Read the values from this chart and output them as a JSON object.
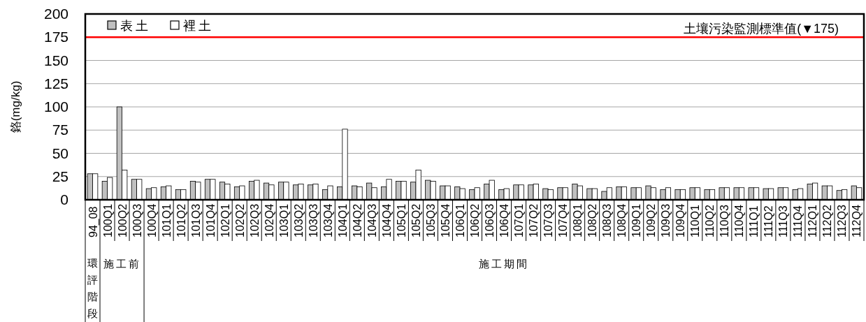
{
  "chart_data": {
    "type": "bar",
    "ylabel": "鉻(mg/kg)",
    "categories": [
      "94_08",
      "100Q1",
      "100Q2",
      "100Q3",
      "100Q4",
      "101Q1",
      "101Q2",
      "101Q3",
      "101Q4",
      "102Q1",
      "102Q2",
      "102Q3",
      "102Q4",
      "103Q1",
      "103Q2",
      "103Q3",
      "103Q4",
      "104Q1",
      "104Q2",
      "104Q3",
      "104Q4",
      "105Q1",
      "105Q2",
      "105Q3",
      "105Q4",
      "106Q1",
      "106Q2",
      "106Q3",
      "106Q4",
      "107Q1",
      "107Q2",
      "107Q3",
      "107Q4",
      "108Q1",
      "108Q2",
      "108Q3",
      "108Q4",
      "109Q1",
      "109Q2",
      "109Q3",
      "109Q4",
      "110Q1",
      "110Q2",
      "110Q3",
      "110Q4",
      "111Q1",
      "111Q2",
      "111Q3",
      "111Q4",
      "112Q1",
      "112Q2",
      "112Q3",
      "112Q4"
    ],
    "series": [
      {
        "name": "表土",
        "color": "#c0c0c0",
        "values": [
          28,
          20,
          100,
          22,
          12,
          14,
          11,
          20,
          22,
          19,
          14,
          20,
          18,
          19,
          16,
          16,
          11,
          14,
          15,
          18,
          14,
          20,
          19,
          21,
          15,
          14,
          11,
          17,
          11,
          16,
          16,
          12,
          13,
          17,
          12,
          9,
          14,
          13,
          15,
          11,
          11,
          13,
          11,
          13,
          13,
          13,
          12,
          13,
          11,
          17,
          15,
          10,
          15
        ]
      },
      {
        "name": "裡土",
        "color": "#ffffff",
        "values": [
          28,
          24,
          32,
          22,
          13,
          15,
          11,
          19,
          22,
          17,
          15,
          21,
          16,
          19,
          17,
          17,
          15,
          76,
          14,
          13,
          22,
          20,
          32,
          20,
          15,
          12,
          13,
          21,
          12,
          16,
          17,
          11,
          13,
          15,
          12,
          13,
          14,
          13,
          13,
          13,
          11,
          13,
          11,
          13,
          13,
          13,
          12,
          13,
          12,
          18,
          15,
          11,
          13
        ]
      }
    ],
    "ylim": [
      0,
      200
    ],
    "yticks": [
      0,
      25,
      50,
      75,
      100,
      125,
      150,
      175,
      200
    ],
    "grid": "y",
    "legend": "top left",
    "ref_lines": [
      {
        "axis": "y",
        "value": 175,
        "label": "土壤污染監測標準值(▼175)",
        "color": "#ff0000"
      }
    ],
    "annotations": [
      "環評階段",
      "施工前",
      "施工期間"
    ]
  }
}
